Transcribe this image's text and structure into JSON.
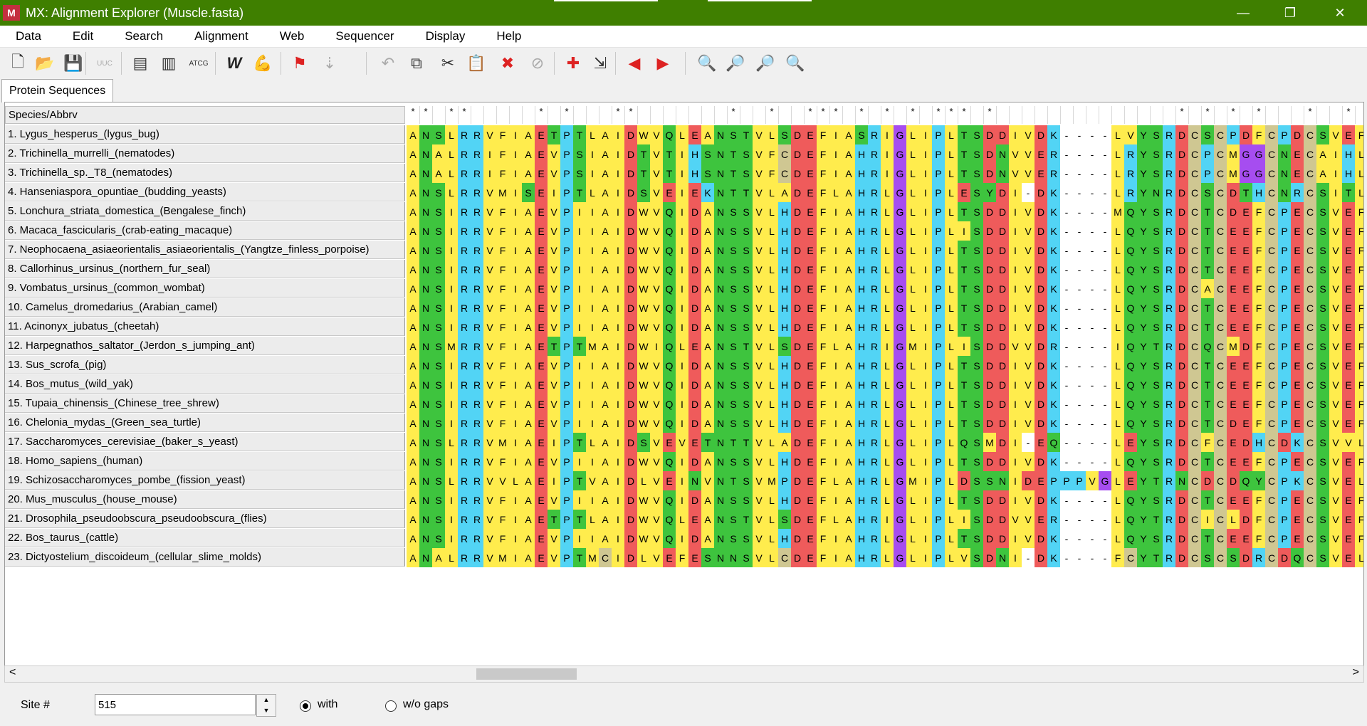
{
  "window": {
    "title": "MX: Alignment Explorer (Muscle.fasta)",
    "minimize": "—",
    "restore": "❐",
    "close": "✕"
  },
  "menu": [
    "Data",
    "Edit",
    "Search",
    "Alignment",
    "Web",
    "Sequencer",
    "Display",
    "Help"
  ],
  "toolbar": [
    {
      "icon": "new-file-icon",
      "glyph": "🗋",
      "color": "#333",
      "enabled": true
    },
    {
      "icon": "open-folder-icon",
      "glyph": "📂",
      "color": "#444",
      "enabled": true
    },
    {
      "icon": "save-icon",
      "glyph": "💾",
      "color": "#333",
      "enabled": true
    },
    {
      "icon": "translate-icon",
      "glyph": "UUC",
      "color": "#aaa",
      "enabled": false
    },
    {
      "icon": "sequence-data-icon",
      "glyph": "▤",
      "color": "#333",
      "enabled": true
    },
    {
      "icon": "columns-icon",
      "glyph": "▥",
      "color": "#333",
      "enabled": true
    },
    {
      "icon": "atcg-icon",
      "glyph": "ATCG",
      "color": "#333",
      "enabled": true
    },
    {
      "icon": "clustalw-icon",
      "glyph": "W",
      "color": "#222",
      "enabled": true
    },
    {
      "icon": "muscle-arm-icon",
      "glyph": "💪",
      "color": "#d22",
      "enabled": true
    },
    {
      "icon": "mark-site-icon",
      "glyph": "⚑",
      "color": "#d22",
      "enabled": true
    },
    {
      "icon": "align-marked-icon",
      "glyph": "⇣",
      "color": "#aaa",
      "enabled": false
    },
    {
      "icon": "undo-icon",
      "glyph": "↶",
      "color": "#aaa",
      "enabled": false
    },
    {
      "icon": "copy-icon",
      "glyph": "⧉",
      "color": "#333",
      "enabled": true
    },
    {
      "icon": "cut-icon",
      "glyph": "✂",
      "color": "#333",
      "enabled": true
    },
    {
      "icon": "paste-icon",
      "glyph": "📋",
      "color": "#aaa",
      "enabled": false
    },
    {
      "icon": "delete-icon",
      "glyph": "✖",
      "color": "#d22",
      "enabled": true
    },
    {
      "icon": "delete-gaps-icon",
      "glyph": "⊘",
      "color": "#aaa",
      "enabled": false
    },
    {
      "icon": "add-sequence-icon",
      "glyph": "✚",
      "color": "#d22",
      "enabled": true
    },
    {
      "icon": "insert-icon",
      "glyph": "⇲",
      "color": "#333",
      "enabled": true
    },
    {
      "icon": "previous-site-icon",
      "glyph": "◀",
      "color": "#d22",
      "enabled": true
    },
    {
      "icon": "next-site-icon",
      "glyph": "▶",
      "color": "#d22",
      "enabled": true
    },
    {
      "icon": "find-icon",
      "glyph": "🔍",
      "color": "#333",
      "enabled": true
    },
    {
      "icon": "find-previous-icon",
      "glyph": "🔎",
      "color": "#333",
      "enabled": true
    },
    {
      "icon": "find-next-icon",
      "glyph": "🔎",
      "color": "#333",
      "enabled": true
    },
    {
      "icon": "find-motif-icon",
      "glyph": "🔍",
      "color": "#333",
      "enabled": true
    }
  ],
  "tab": {
    "label": "Protein Sequences"
  },
  "grid": {
    "header": "Species/Abbrv",
    "consensus": "**.**.....*.*...**.......*..*..***.*.*.*.***.*..............*.*.*.*...*..*..",
    "species": [
      "1. Lygus_hesperus_(lygus_bug)",
      "2. Trichinella_murrelli_(nematodes)",
      "3. Trichinella_sp._T8_(nematodes)",
      "4. Hanseniaspora_opuntiae_(budding_yeasts)",
      "5. Lonchura_striata_domestica_(Bengalese_finch)",
      "6. Macaca_fascicularis_(crab-eating_macaque)",
      "7. Neophocaena_asiaeorientalis_asiaeorientalis_(Yangtze_finless_porpoise)",
      "8. Callorhinus_ursinus_(northern_fur_seal)",
      "9. Vombatus_ursinus_(common_wombat)",
      "10. Camelus_dromedarius_(Arabian_camel)",
      "11. Acinonyx_jubatus_(cheetah)",
      "12. Harpegnathos_saltator_(Jerdon_s_jumping_ant)",
      "13. Sus_scrofa_(pig)",
      "14. Bos_mutus_(wild_yak)",
      "15. Tupaia_chinensis_(Chinese_tree_shrew)",
      "16. Chelonia_mydas_(Green_sea_turtle)",
      "17. Saccharomyces_cerevisiae_(baker_s_yeast)",
      "18. Homo_sapiens_(human)",
      "19. Schizosaccharomyces_pombe_(fission_yeast)",
      "20. Mus_musculus_(house_mouse)",
      "21. Drosophila_pseudoobscura_pseudoobscura_(flies)",
      "22. Bos_taurus_(cattle)",
      "23. Dictyostelium_discoideum_(cellular_slime_molds)"
    ],
    "sequences": [
      "ANSLRRVFIAETPTLAIDWVQLEANSTVLSDEFIASRIGLIPLTSDDIVDK----LVYSRDCSCPDFCPDCSVEF",
      "ANALRRIFIAEVPSIAIDTVTIHSNTSVFCDEFIAHRIGLIPLTSDNVVER----LRYSRDCPCMGGCNECAIHL",
      "ANALRRIFIAEVPSIAIDTVTIHSNTSVFCDEFIAHRIGLIPLTSDNVVER----LRYSRDCPCMGGCNECAIHL",
      "ANSLRRVMISEIPTLAIDSVEIEKNTTVLADEFLAHRLGLIPLESYDI-DK----LRYNRDCSCDTHCNRCSITL",
      "ANSIRRVFIAEVPIIAIDWVQIDANSSVLHDEFIAHRLGLIPLTSDDIVDK----MQYSRDCTCDEFCPECSVEF",
      "ANSIRRVFIAEVPIIAIDWVQIDANSSVLHDEFIAHRLGLIPLISDDIVDK----LQYSRDCTCEEFCPECSVEF",
      "ANSIRRVFIAEVPIIAIDWVQIDANSSVLHDEFIAHRLGLIPLTSDDIVDK----LQYSRDCTCEEFCPECSVEF",
      "ANSIRRVFIAEVPIIAIDWVQIDANSSVLHDEFIAHRLGLIPLTSDDIVDK----LQYSRDCTCEEFCPECSVEF",
      "ANSIRRVFIAEVPIIAIDWVQIDANSSVLHDEFIAHRLGLIPLTSDDIVDK----LQYSRDCACEEFCPECSVEF",
      "ANSIRRVFIAEVPIIAIDWVQIDANSSVLHDEFIAHRLGLIPLTSDDIVDK----LQYSRDCTCEEFCPECSVEF",
      "ANSIRRVFIAEVPIIAIDWVQIDANSSVLHDEFIAHRLGLIPLTSDDIVDK----LQYSRDCTCEEFCPECSVEF",
      "ANSMRRVFIAETPTMAIDWIQLEANSTVLSDEFLAHRIGMIPLISDDVVDR----IQYTRDCQCMDFCPECSVEF",
      "ANSIRRVFIAEVPIIAIDWVQIDANSSVLHDEFIAHRLGLIPLTSDDIVDK----LQYSRDCTCEEFCPECSVEF",
      "ANSIRRVFIAEVPIIAIDWVQIDANSSVLHDEFIAHRLGLIPLTSDDIVDK----LQYSRDCTCEEFCPECSVEF",
      "ANSIRRVFIAEVPIIAIDWVQIDANSSVLHDEFIAHRLGLIPLTSDDIVDK----LQYSRDCTCEEFCPECSVEF",
      "ANSIRRVFIAEVPIIAIDWVQIDANSSVLHDEFIAHRLGLIPLTSDDIVDK----LQYSRDCTCDEFCPECSVEF",
      "ANSLRRVMIAEIPTLAIDSVEVETNTTVLADEFIAHRLGLIPLQSMDI-EQ----LEYSRDCFCEDHCDKCSVVL",
      "ANSIRRVFIAEVPIIAIDWVQIDANSSVLHDEFIAHRLGLIPLTSDDIVDK----LQYSRDCTCEEFCPECSVEF",
      "ANSLRRVVLAEIPTVAIDLVEINVNTSVMPDEFLAHRLGMIPLDSSNIDEPPPVGLEYTRNCDCDQYCPKCSVEL",
      "ANSIRRVFIAEVPIIAIDWVQIDANSSVLHDEFIAHRLGLIPLTSDDIVDK----LQYSRDCTCEEFCPECSVEF",
      "ANSIRRVFIAETPTLAIDWVQLEANSTVLSDEFLAHRIGLIPLISDDVVER----LQYTRDCICLDFCPECSVEF",
      "ANSIRRVFIAEVPIIAIDWVQIDANSSVLHDEFIAHRLGLIPLTSDDIVDK----LQYSRDCTCEEFCPECSVEF",
      "ANALRRVMIAEVPTMCIDLVEFESNNSVLCDEFIAHRLGLIPLVSDNI-DK----FCYTRDCSCSDRCDQCSVEL"
    ],
    "residue_colors": {
      "A": "#ffec4d",
      "V": "#ffec4d",
      "I": "#ffec4d",
      "L": "#ffec4d",
      "M": "#ffec4d",
      "F": "#ffec4d",
      "W": "#ffec4d",
      "N": "#3ec43e",
      "S": "#3ec43e",
      "T": "#3ec43e",
      "Q": "#3ec43e",
      "R": "#52d4f5",
      "K": "#52d4f5",
      "H": "#52d4f5",
      "D": "#ef5b5b",
      "E": "#ef5b5b",
      "G": "#a64df0",
      "P": "#52d4f5",
      "Y": "#3ec43e",
      "C": "#cfc792",
      "-": "#ffffff"
    }
  },
  "status": {
    "site_label": "Site #",
    "site_value": "515",
    "with_label": "with",
    "without_label": "w/o gaps",
    "with_selected": true
  }
}
